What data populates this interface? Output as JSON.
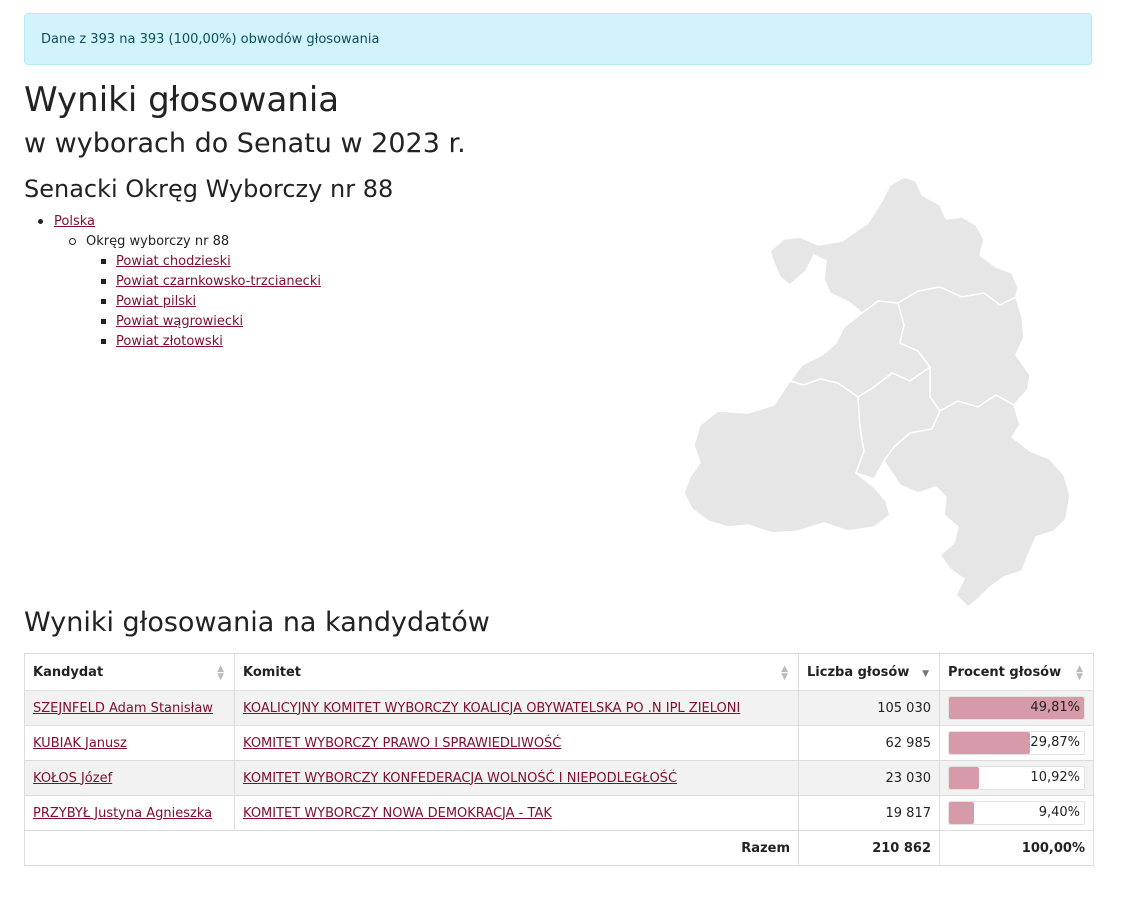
{
  "alert": "Dane z 393 na 393 (100,00%) obwodów głosowania",
  "title": "Wyniki głosowania",
  "subtitle": "w wyborach do Senatu w 2023 r.",
  "district": "Senacki Okręg Wyborczy nr 88",
  "nav": {
    "root": "Polska",
    "current": "Okręg wyborczy nr 88",
    "powiaty": [
      "Powiat chodzieski",
      "Powiat czarnkowsko-trzcianecki",
      "Powiat pilski",
      "Powiat wągrowiecki",
      "Powiat złotowski"
    ]
  },
  "results_title": "Wyniki głosowania na kandydatów",
  "table": {
    "headers": {
      "candidate": "Kandydat",
      "committee": "Komitet",
      "votes": "Liczba głosów",
      "percent": "Procent głosów"
    },
    "rows": [
      {
        "candidate": "SZEJNFELD Adam Stanisław",
        "committee": "KOALICYJNY KOMITET WYBORCZY KOALICJA OBYWATELSKA PO .N IPL ZIELONI",
        "votes": "105 030",
        "percent": "49,81%",
        "share": 49.81
      },
      {
        "candidate": "KUBIAK Janusz",
        "committee": "KOMITET WYBORCZY PRAWO I SPRAWIEDLIWOŚĆ",
        "votes": "62 985",
        "percent": "29,87%",
        "share": 29.87
      },
      {
        "candidate": "KOŁOS Józef",
        "committee": "KOMITET WYBORCZY KONFEDERACJA WOLNOŚĆ I NIEPODLEGŁOŚĆ",
        "votes": "23 030",
        "percent": "10,92%",
        "share": 10.92
      },
      {
        "candidate": "PRZYBYŁ Justyna Agnieszka",
        "committee": "KOMITET WYBORCZY NOWA DEMOKRACJA - TAK",
        "votes": "19 817",
        "percent": "9,40%",
        "share": 9.4
      }
    ],
    "total": {
      "label": "Razem",
      "votes": "210 862",
      "percent": "100,00%"
    }
  },
  "colors": {
    "link": "#800f2f",
    "bar": "#d69aa8",
    "alert_bg": "#d1f3fb",
    "map_fill": "#e6e6e6"
  }
}
